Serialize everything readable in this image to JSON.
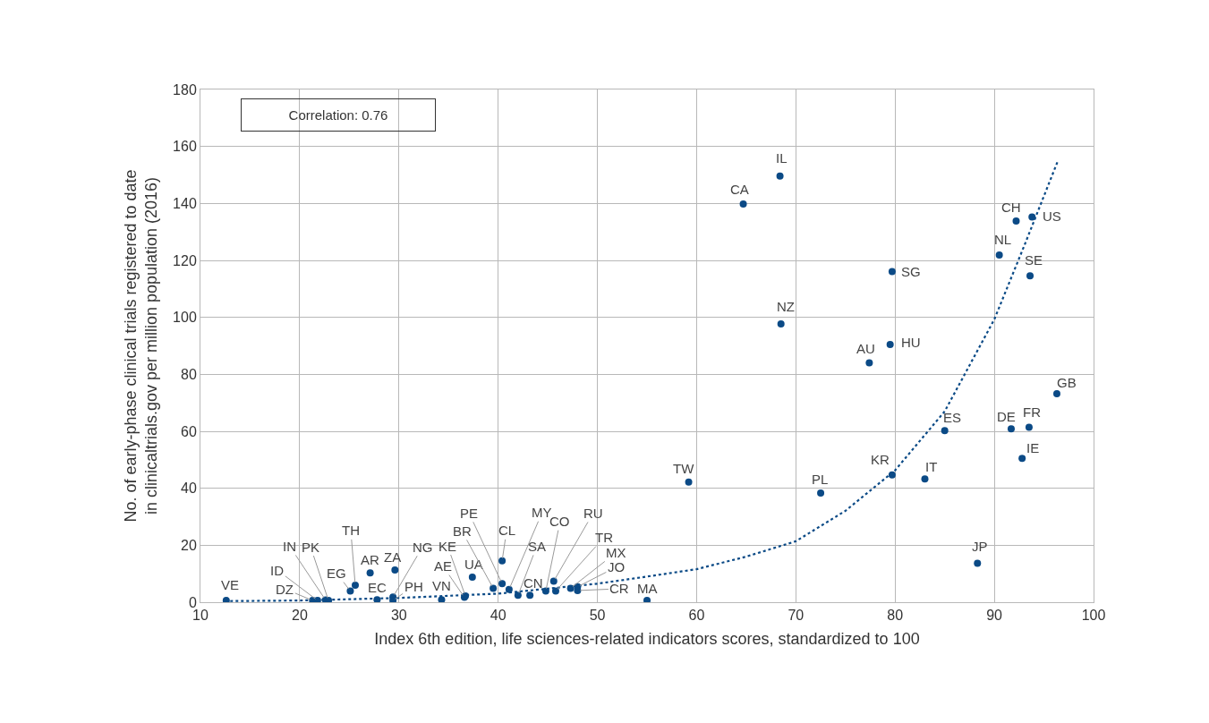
{
  "chart_data": {
    "type": "scatter",
    "xlabel": "Index 6th edition, life sciences-related indicators scores, standardized to 100",
    "ylabel": "No. of early-phase clinical trials registered to date in clinicaltrials.gov per million population (2016)",
    "xlim": [
      10,
      100
    ],
    "xticks": [
      10,
      20,
      30,
      40,
      50,
      60,
      70,
      80,
      90,
      100
    ],
    "ylim": [
      0,
      180
    ],
    "yticks": [
      0,
      20,
      40,
      60,
      80,
      100,
      120,
      140,
      160,
      180
    ],
    "grid": true,
    "marker": "circle",
    "series": [
      {
        "color": "#0b4a86",
        "x": [
          12.6,
          21.3,
          21.8,
          22.6,
          22.9,
          25.1,
          25.6,
          27.1,
          27.8,
          29.6,
          29.4,
          29.4,
          34.3,
          36.6,
          36.7,
          37.4,
          39.5,
          40.4,
          40.4,
          41.1,
          42.0,
          43.2,
          44.8,
          45.6,
          45.8,
          47.3,
          48.0,
          48.0,
          55.0,
          59.2,
          64.7,
          68.4,
          68.5,
          72.5,
          77.4,
          79.5,
          79.7,
          79.7,
          83.0,
          85.0,
          88.3,
          90.5,
          91.7,
          92.8,
          93.5,
          92.2,
          93.6,
          93.8,
          96.3
        ],
        "values": [
          0.6,
          0.6,
          0.6,
          0.8,
          0.6,
          3.9,
          6.0,
          10.3,
          0.9,
          11.3,
          1.8,
          0.6,
          0.9,
          1.7,
          2.2,
          8.8,
          4.9,
          6.5,
          14.5,
          4.5,
          2.4,
          2.4,
          3.9,
          7.4,
          3.9,
          4.9,
          5.4,
          4.1,
          0.6,
          42.2,
          139.8,
          149.6,
          97.7,
          38.3,
          84.0,
          90.5,
          116.1,
          44.7,
          43.3,
          60.2,
          13.7,
          121.9,
          60.9,
          50.5,
          61.4,
          133.8,
          114.6,
          135.2,
          73.2
        ]
      },
      {
        "type": "line",
        "color": "#0b4a86",
        "line_style": "dotted",
        "marker": "none",
        "x": [
          13,
          20,
          30,
          40,
          50,
          55,
          60,
          65,
          70,
          75,
          80,
          85,
          90,
          93,
          96.4
        ],
        "values": [
          0.4,
          0.6,
          1.5,
          3.0,
          6.5,
          9,
          11.6,
          16.0,
          21.4,
          32.1,
          46.3,
          67,
          99.3,
          125,
          154.9
        ]
      }
    ],
    "annotations": [
      "Correlation: 0.76",
      {
        "text": "VE",
        "x": 12.6,
        "y": 0.6
      },
      {
        "text": "DZ",
        "x": 21.3,
        "y": 0.6
      },
      {
        "text": "ID",
        "x": 21.8,
        "y": 0.6
      },
      {
        "text": "IN",
        "x": 22.6,
        "y": 0.8
      },
      {
        "text": "PK",
        "x": 22.9,
        "y": 0.6
      },
      {
        "text": "EG",
        "x": 25.1,
        "y": 3.9
      },
      {
        "text": "TH",
        "x": 25.6,
        "y": 6.0
      },
      {
        "text": "AR",
        "x": 27.1,
        "y": 10.3
      },
      {
        "text": "EC",
        "x": 27.8,
        "y": 0.9
      },
      {
        "text": "ZA",
        "x": 29.6,
        "y": 11.3
      },
      {
        "text": "NG",
        "x": 29.4,
        "y": 1.8
      },
      {
        "text": "PH",
        "x": 29.4,
        "y": 0.6
      },
      {
        "text": "VN",
        "x": 34.3,
        "y": 0.9
      },
      {
        "text": "AE",
        "x": 36.6,
        "y": 1.7
      },
      {
        "text": "KE",
        "x": 36.7,
        "y": 2.2
      },
      {
        "text": "UA",
        "x": 37.4,
        "y": 8.8
      },
      {
        "text": "BR",
        "x": 39.5,
        "y": 4.9
      },
      {
        "text": "PE",
        "x": 40.4,
        "y": 6.5
      },
      {
        "text": "CL",
        "x": 40.4,
        "y": 14.5
      },
      {
        "text": "MY",
        "x": 41.1,
        "y": 4.5
      },
      {
        "text": "SA",
        "x": 42.0,
        "y": 2.4
      },
      {
        "text": "CN",
        "x": 43.2,
        "y": 2.4
      },
      {
        "text": "CO",
        "x": 44.8,
        "y": 3.9
      },
      {
        "text": "RU",
        "x": 45.6,
        "y": 7.4
      },
      {
        "text": "TR",
        "x": 45.8,
        "y": 3.9
      },
      {
        "text": "MX",
        "x": 47.3,
        "y": 4.9
      },
      {
        "text": "JO",
        "x": 48.0,
        "y": 5.4
      },
      {
        "text": "CR",
        "x": 48.0,
        "y": 4.1
      },
      {
        "text": "MA",
        "x": 55.0,
        "y": 0.6
      },
      {
        "text": "TW",
        "x": 59.2,
        "y": 42.2
      },
      {
        "text": "CA",
        "x": 64.7,
        "y": 139.8
      },
      {
        "text": "IL",
        "x": 68.4,
        "y": 149.6
      },
      {
        "text": "NZ",
        "x": 68.5,
        "y": 97.7
      },
      {
        "text": "PL",
        "x": 72.5,
        "y": 38.3
      },
      {
        "text": "AU",
        "x": 77.4,
        "y": 84.0
      },
      {
        "text": "HU",
        "x": 79.5,
        "y": 90.5
      },
      {
        "text": "SG",
        "x": 79.7,
        "y": 116.1
      },
      {
        "text": "KR",
        "x": 79.7,
        "y": 44.7
      },
      {
        "text": "IT",
        "x": 83.0,
        "y": 43.3
      },
      {
        "text": "ES",
        "x": 85.0,
        "y": 60.2
      },
      {
        "text": "JP",
        "x": 88.3,
        "y": 13.7
      },
      {
        "text": "NL",
        "x": 90.5,
        "y": 121.9
      },
      {
        "text": "DE",
        "x": 91.7,
        "y": 60.9
      },
      {
        "text": "IE",
        "x": 92.8,
        "y": 50.5
      },
      {
        "text": "FR",
        "x": 93.5,
        "y": 61.4
      },
      {
        "text": "CH",
        "x": 92.2,
        "y": 133.8
      },
      {
        "text": "SE",
        "x": 93.6,
        "y": 114.6
      },
      {
        "text": "US",
        "x": 93.8,
        "y": 135.2
      },
      {
        "text": "GB",
        "x": 96.3,
        "y": 73.2
      }
    ]
  }
}
